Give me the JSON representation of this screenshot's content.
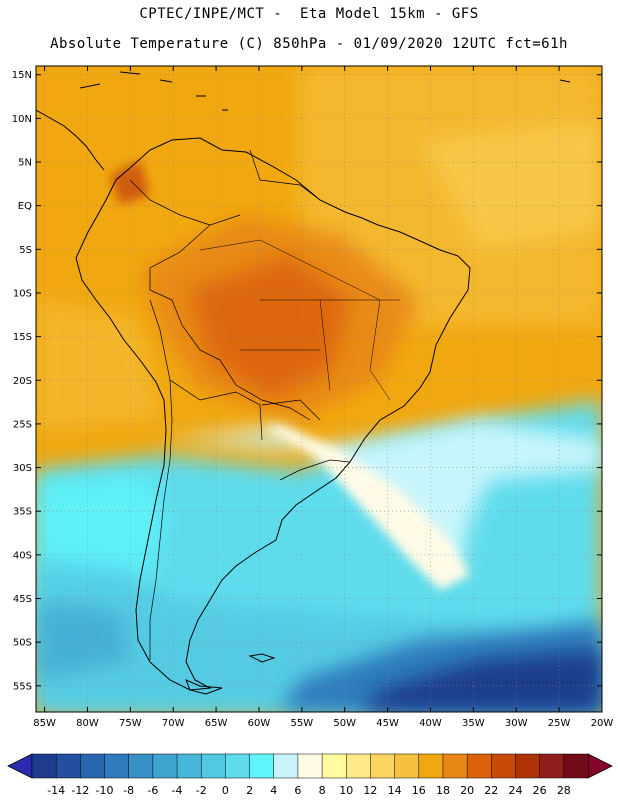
{
  "header": {
    "line1": "CPTEC/INPE/MCT -  Eta Model 15km - GFS",
    "line2": "Absolute Temperature (C) 850hPa - 01/09/2020 12UTC fct=61h"
  },
  "map": {
    "lon_min": -86,
    "lon_max": -20,
    "lat_min": -58,
    "lat_max": 16,
    "lat_ticks": [
      {
        "value": 15,
        "label": "15N"
      },
      {
        "value": 10,
        "label": "10N"
      },
      {
        "value": 5,
        "label": "5N"
      },
      {
        "value": 0,
        "label": "EQ"
      },
      {
        "value": -5,
        "label": "5S"
      },
      {
        "value": -10,
        "label": "10S"
      },
      {
        "value": -15,
        "label": "15S"
      },
      {
        "value": -20,
        "label": "20S"
      },
      {
        "value": -25,
        "label": "25S"
      },
      {
        "value": -30,
        "label": "30S"
      },
      {
        "value": -35,
        "label": "35S"
      },
      {
        "value": -40,
        "label": "40S"
      },
      {
        "value": -45,
        "label": "45S"
      },
      {
        "value": -50,
        "label": "50S"
      },
      {
        "value": -55,
        "label": "55S"
      }
    ],
    "lon_ticks": [
      {
        "value": -85,
        "label": "85W"
      },
      {
        "value": -80,
        "label": "80W"
      },
      {
        "value": -75,
        "label": "75W"
      },
      {
        "value": -70,
        "label": "70W"
      },
      {
        "value": -65,
        "label": "65W"
      },
      {
        "value": -60,
        "label": "60W"
      },
      {
        "value": -55,
        "label": "55W"
      },
      {
        "value": -50,
        "label": "50W"
      },
      {
        "value": -45,
        "label": "45W"
      },
      {
        "value": -40,
        "label": "40W"
      },
      {
        "value": -35,
        "label": "35W"
      },
      {
        "value": -30,
        "label": "30W"
      },
      {
        "value": -25,
        "label": "25W"
      },
      {
        "value": -20,
        "label": "20W"
      }
    ]
  },
  "colorbar": {
    "labels": [
      "-14",
      "-12",
      "-10",
      "-8",
      "-6",
      "-4",
      "-2",
      "0",
      "2",
      "4",
      "6",
      "8",
      "10",
      "12",
      "14",
      "16",
      "18",
      "20",
      "22",
      "24",
      "26",
      "28"
    ],
    "colors": [
      "#1e3c8c",
      "#23509e",
      "#2866ae",
      "#2f7bbd",
      "#3790c6",
      "#3fa4cf",
      "#47b6d8",
      "#52c8e2",
      "#5fdcec",
      "#5ff5fb",
      "#c8f5fc",
      "#fffbe6",
      "#fffb9e",
      "#fde986",
      "#fbd560",
      "#f6bf3e",
      "#f1a810",
      "#e88716",
      "#dc620a",
      "#c84a08",
      "#ad3208",
      "#8f1e1c",
      "#700c18"
    ],
    "left_arrow_color": "#2b2bb0",
    "right_arrow_color": "#850529"
  }
}
